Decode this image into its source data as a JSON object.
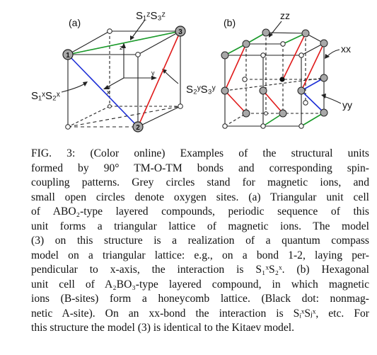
{
  "panel_a": {
    "panel_label": "(a)",
    "label_top": "S₁ᶻS₃ᶻ",
    "label_right": "S₂ʸS₃ʸ",
    "label_left": "S₁ˣS₂ˣ",
    "axis_z": "z",
    "axis_y": "y",
    "axis_x": "x",
    "node_1": "1",
    "node_2": "2",
    "node_3": "3"
  },
  "panel_b": {
    "panel_label": "(b)",
    "label_zz": "zz",
    "label_xx": "xx",
    "label_yy": "yy"
  },
  "colors": {
    "red": "#e01b1b",
    "green": "#1a9a2a",
    "blue": "#1d2fd6",
    "grey": "#a8a8a8"
  },
  "caption": {
    "lines": [
      "FIG. 3:  (Color online) Examples of the structural units",
      "formed by 90° TM-O-TM bonds and corresponding spin-",
      "coupling patterns. Grey circles stand for magnetic ions, and",
      "small open circles denote oxygen sites. (a) Triangular unit cell",
      "of ABO₂-type layered compounds, periodic sequence of this",
      "unit forms a triangular lattice of magnetic ions. The model",
      "(3) on this structure is a realization of a quantum compass",
      "model on a triangular lattice: e.g., on a bond 1-2, laying per-",
      "pendicular to x-axis, the interaction is S₁ˣS₂ˣ. (b) Hexagonal",
      "unit cell of A₂BO₃-type layered compound, in which magnetic",
      "ions (B-sites) form a honeycomb lattice. (Black dot: nonmag-",
      "netic A-site). On an xx-bond the interaction is SᵢˣSⱼˣ, etc. For",
      "this structure the model (3) is identical to the Kitaev model."
    ]
  }
}
